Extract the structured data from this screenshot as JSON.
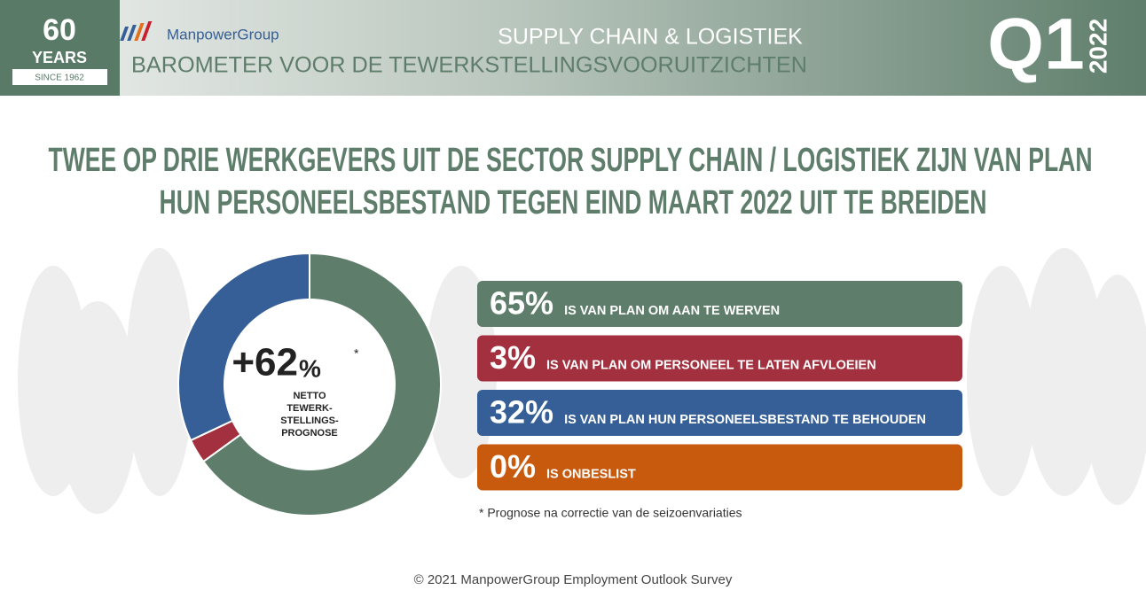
{
  "header": {
    "badge_number": "60",
    "badge_word": "YEARS",
    "badge_since": "SINCE 1962",
    "brand": "ManpowerGroup",
    "sector": "SUPPLY CHAIN & LOGISTIEK",
    "barometer": "BAROMETER VOOR DE TEWERKSTELLINGSVOORUITZICHTEN",
    "quarter": "Q1",
    "year": "2022"
  },
  "chart_data": {
    "type": "pie",
    "donut": true,
    "title": [
      "TWEE OP DRIE WERKGEVERS UIT DE SECTOR SUPPLY CHAIN / LOGISTIEK ZIJN VAN PLAN",
      "HUN PERSONEELSBESTAND TEGEN EIND MAART 2022 UIT TE BREIDEN"
    ],
    "categories": [
      "IS VAN PLAN OM AAN TE WERVEN",
      "IS VAN PLAN OM PERSONEEL TE LATEN AFVLOEIEN",
      "IS VAN PLAN HUN PERSONEELSBESTAND TE BEHOUDEN",
      "IS ONBESLIST"
    ],
    "values": [
      65,
      3,
      32,
      0
    ],
    "value_labels": [
      "65%",
      "3%",
      "32%",
      "0%"
    ],
    "colors": [
      "#5e7d6b",
      "#a3303f",
      "#355f96",
      "#c85a0e"
    ],
    "center_value": "+62",
    "center_unit": "%",
    "center_mark": "*",
    "center_caption": [
      "NETTO",
      "TEWERK-",
      "STELLINGS-",
      "PROGNOSE"
    ],
    "footnote": "* Prognose na correctie van de seizoenvariaties"
  },
  "footer": "© 2021 ManpowerGroup Employment Outlook Survey"
}
